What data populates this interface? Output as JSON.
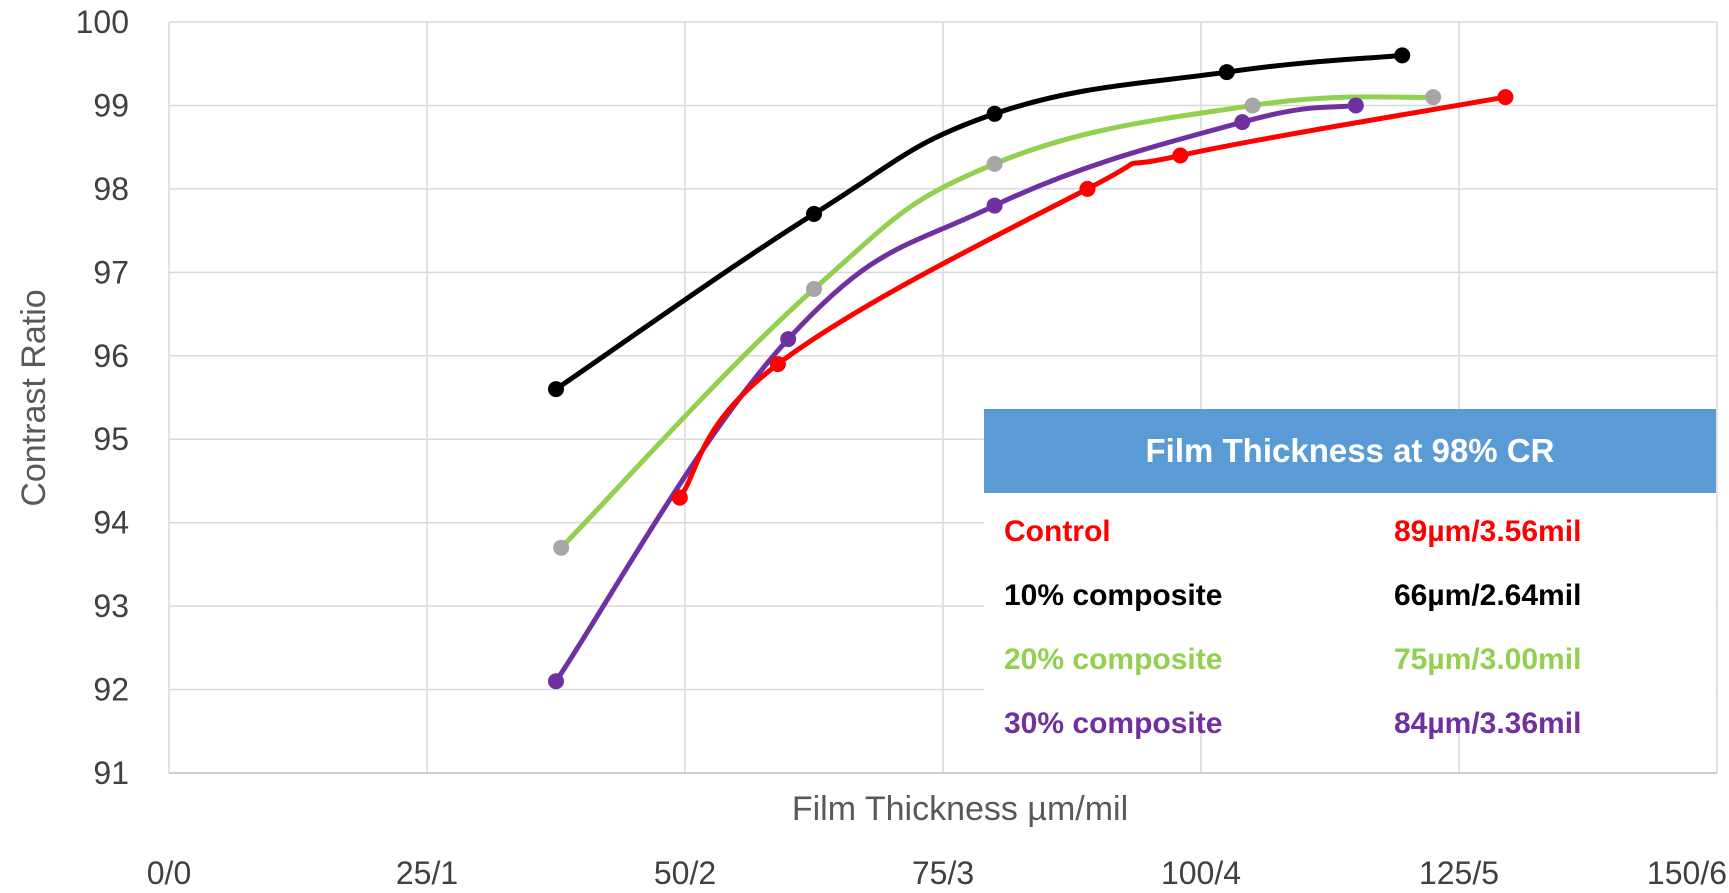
{
  "chart_data": {
    "type": "line",
    "title": "",
    "xlabel": "Film Thickness µm/mil",
    "ylabel": "Contrast Ratio",
    "xlim": [
      0,
      150
    ],
    "ylim": [
      91,
      100
    ],
    "x_ticks": [
      0,
      25,
      50,
      75,
      100,
      125,
      150
    ],
    "x_tick_labels": [
      "0/0",
      "25/1",
      "50/2",
      "75/3",
      "100/4",
      "125/5",
      "150/6"
    ],
    "y_ticks": [
      91,
      92,
      93,
      94,
      95,
      96,
      97,
      98,
      99,
      100
    ],
    "y_tick_labels": [
      "91",
      "92",
      "93",
      "94",
      "95",
      "96",
      "97",
      "98",
      "99",
      "100"
    ],
    "grid": true,
    "smooth": true,
    "series": [
      {
        "key": "ten",
        "color": "#000000",
        "marker_color": "#000000",
        "points": [
          [
            37.5,
            95.6
          ],
          [
            62.5,
            97.7
          ],
          [
            80,
            98.9
          ],
          [
            102.5,
            99.4
          ],
          [
            119.5,
            99.6
          ]
        ]
      },
      {
        "key": "twenty",
        "color": "#92d050",
        "marker_color": "#a6a6a6",
        "points": [
          [
            38,
            93.7
          ],
          [
            62.5,
            96.8
          ],
          [
            80,
            98.3
          ],
          [
            105,
            99.0
          ],
          [
            122.5,
            99.1
          ]
        ]
      },
      {
        "key": "thirty",
        "color": "#7030a0",
        "marker_color": "#7030a0",
        "points": [
          [
            37.5,
            92.1
          ],
          [
            60,
            96.2
          ],
          [
            80,
            97.8
          ],
          [
            104,
            98.8
          ],
          [
            115,
            99.0
          ]
        ]
      },
      {
        "key": "control",
        "color": "#ff0000",
        "marker_color": "#ff0000",
        "points": [
          [
            49.5,
            94.3
          ],
          [
            59,
            95.9
          ],
          [
            89,
            98.0
          ],
          [
            98,
            98.4
          ],
          [
            129.5,
            99.1
          ]
        ]
      }
    ],
    "table": {
      "header": "Film Thickness at 98% CR",
      "header_color": "#5b9bd5",
      "rows": [
        {
          "label": "Control",
          "value": "89µm/3.56mil",
          "color": "#ff0000"
        },
        {
          "label": "10% composite",
          "value": "66µm/2.64mil",
          "color": "#000000"
        },
        {
          "label": "20% composite",
          "value": "75µm/3.00mil",
          "color": "#92d050"
        },
        {
          "label": "30% composite",
          "value": "84µm/3.36mil",
          "color": "#7030a0"
        }
      ]
    }
  }
}
